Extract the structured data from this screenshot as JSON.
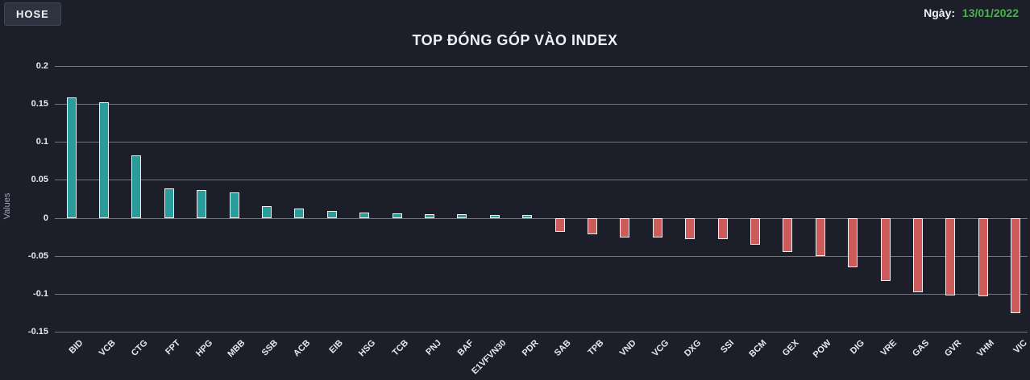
{
  "header": {
    "exchange_button": "HOSE",
    "date_label": "Ngày:",
    "date_value": "13/01/2022",
    "date_color": "#4caf50"
  },
  "chart_data": {
    "type": "bar",
    "title": "TOP ĐÓNG GÓP VÀO INDEX",
    "xlabel": "",
    "ylabel": "Values",
    "ylim": [
      -0.15,
      0.2
    ],
    "grid": true,
    "ytick_values": [
      0.2,
      0.15,
      0.1,
      0.05,
      0,
      -0.05,
      -0.1,
      -0.15
    ],
    "ytick_labels": [
      "0.2",
      "0.15",
      "0.1",
      "0.05",
      "0",
      "-0.05",
      "-0.1",
      "-0.15"
    ],
    "categories": [
      "BID",
      "VCB",
      "CTG",
      "FPT",
      "HPG",
      "MBB",
      "SSB",
      "ACB",
      "EIB",
      "HSG",
      "TCB",
      "PNJ",
      "BAF",
      "E1VFVN30",
      "PDR",
      "SAB",
      "TPB",
      "VND",
      "VCG",
      "DXG",
      "SSI",
      "BCM",
      "GEX",
      "POW",
      "DIG",
      "VRE",
      "GAS",
      "GVR",
      "VHM",
      "VIC"
    ],
    "values": [
      0.159,
      0.152,
      0.082,
      0.039,
      0.037,
      0.033,
      0.015,
      0.012,
      0.009,
      0.007,
      0.006,
      0.005,
      0.005,
      0.004,
      0.004,
      -0.019,
      -0.022,
      -0.026,
      -0.026,
      -0.028,
      -0.028,
      -0.035,
      -0.045,
      -0.05,
      -0.065,
      -0.083,
      -0.098,
      -0.102,
      -0.103,
      -0.126
    ],
    "positive_color": "#2b9c9c",
    "negative_color": "#cd5b5b",
    "bar_border_color": "#eef0f2",
    "background_color": "#1c1f2a",
    "gridline_color": "#84878f"
  }
}
